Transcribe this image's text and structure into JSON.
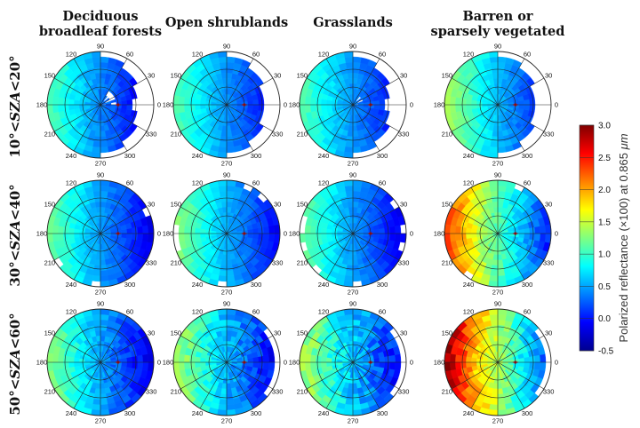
{
  "chart_data": {
    "type": "heatmap",
    "subtype": "polar",
    "columns": [
      "Deciduous broadleaf forests",
      "Open shrublands",
      "Grasslands",
      "Barren or sparsely vegetated"
    ],
    "column_lines": [
      [
        "Deciduous",
        "broadleaf forests"
      ],
      [
        "Open shrublands"
      ],
      [
        "Grasslands"
      ],
      [
        "Barren or",
        "sparsely vegetated"
      ]
    ],
    "rows": [
      {
        "prefix": "10°<",
        "var": "SZA",
        "suffix": "<20°"
      },
      {
        "prefix": "30°<",
        "var": "SZA",
        "suffix": "<40°"
      },
      {
        "prefix": "50°<",
        "var": "SZA",
        "suffix": "<60°"
      }
    ],
    "angle_labels": [
      "0",
      "30",
      "60",
      "90",
      "120",
      "150",
      "180",
      "210",
      "240",
      "270",
      "300",
      "330"
    ],
    "colorbar": {
      "label_plain": "Polarized reflectance (×100) at 0.865 ",
      "label_unit": "μm",
      "ticks": [
        "-0.5",
        "0.0",
        "0.5",
        "1.0",
        "1.5",
        "2.0",
        "2.5",
        "3.0"
      ],
      "range": [
        -0.5,
        3.0
      ],
      "colormap": "jet"
    },
    "panels": [
      [
        {
          "min": -0.4,
          "max": 1.1,
          "cov": 0.62,
          "hole": 0.28,
          "max_deg": 55,
          "rs": 1.0,
          "amp": 0.06
        },
        {
          "min": -0.35,
          "max": 1.2,
          "cov": 1.0,
          "hole": 0,
          "max_deg": 60,
          "rs": 1.0,
          "amp": 0.05
        },
        {
          "min": -0.4,
          "max": 1.3,
          "cov": 0.95,
          "hole": 0,
          "max_deg": 60,
          "rs": 1.0,
          "amp": 0.08
        }
      ],
      [
        {
          "min": -0.3,
          "max": 1.1,
          "cov": 0.65,
          "hole": 0,
          "max_deg": 55,
          "rs": 1.0,
          "amp": 0.05
        },
        {
          "min": -0.3,
          "max": 1.3,
          "cov": 1.0,
          "hole": 0,
          "max_deg": 60,
          "rs": 1.0,
          "amp": 0.05
        },
        {
          "min": -0.35,
          "max": 1.4,
          "cov": 0.92,
          "hole": 0,
          "max_deg": 60,
          "rs": 1.0,
          "amp": 0.1
        }
      ],
      [
        {
          "min": -0.3,
          "max": 1.1,
          "cov": 0.62,
          "hole": 0.25,
          "max_deg": 55,
          "rs": 1.0,
          "amp": 0.06
        },
        {
          "min": -0.35,
          "max": 1.2,
          "cov": 1.0,
          "hole": 0,
          "max_deg": 60,
          "rs": 1.0,
          "amp": 0.05
        },
        {
          "min": -0.35,
          "max": 1.45,
          "cov": 0.92,
          "hole": 0,
          "max_deg": 60,
          "rs": 1.0,
          "amp": 0.12
        }
      ],
      [
        {
          "min": -0.3,
          "max": 1.4,
          "cov": 0.66,
          "hole": 0,
          "max_deg": 55,
          "rs": 1.0,
          "amp": 0.05
        },
        {
          "min": -0.35,
          "max": 2.4,
          "cov": 1.0,
          "hole": 0,
          "max_deg": 60,
          "rs": 1.2,
          "amp": 0.05
        },
        {
          "min": -0.35,
          "max": 3.0,
          "cov": 0.92,
          "hole": 0,
          "max_deg": 60,
          "rs": 1.4,
          "amp": 0.06
        }
      ]
    ]
  }
}
